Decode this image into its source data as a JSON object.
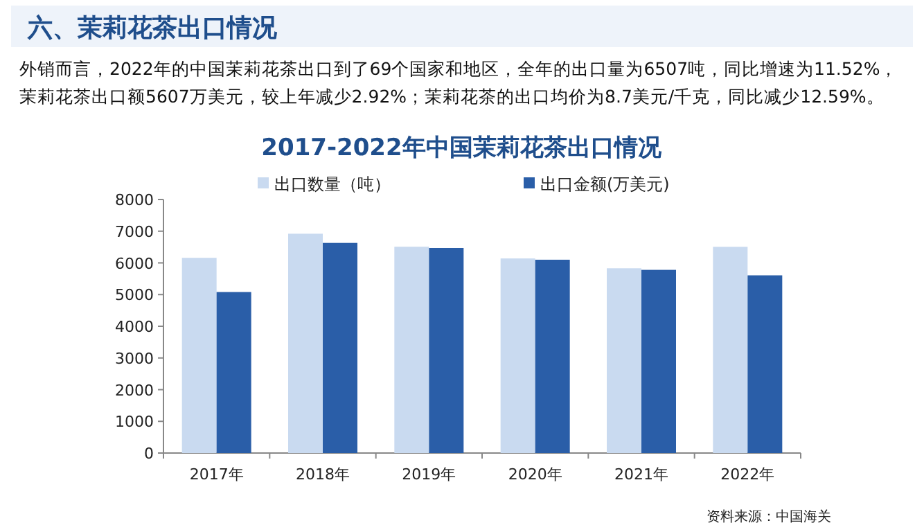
{
  "chart_data": {
    "type": "bar",
    "title": "2017-2022年中国茉莉花茶出口情况",
    "annotations": [
      "六、茉莉花茶出口情况",
      "外销而言，2022年的中国茉莉花茶出口到了69个国家和地区，全年的出口量为6507吨，同比增速为11.52%，茉莉花茶出口额5607万美元，较上年减少2.92%；茉莉花茶的出口均价为8.7美元/千克，同比减少12.59%。",
      "资料来源：中国海关"
    ],
    "categories": [
      "2017年",
      "2018年",
      "2019年",
      "2020年",
      "2021年",
      "2022年"
    ],
    "series": [
      {
        "name": "出口数量（吨）",
        "color": "#c9daf0",
        "values": [
          6160,
          6920,
          6510,
          6140,
          5830,
          6507
        ]
      },
      {
        "name": "出口金额(万美元)",
        "color": "#2a5ea8",
        "values": [
          5080,
          6630,
          6470,
          6100,
          5780,
          5607
        ]
      }
    ],
    "ylim": [
      0,
      8000
    ],
    "yticks": [
      0,
      1000,
      2000,
      3000,
      4000,
      5000,
      6000,
      7000,
      8000
    ],
    "grid": false,
    "legend": "top"
  }
}
